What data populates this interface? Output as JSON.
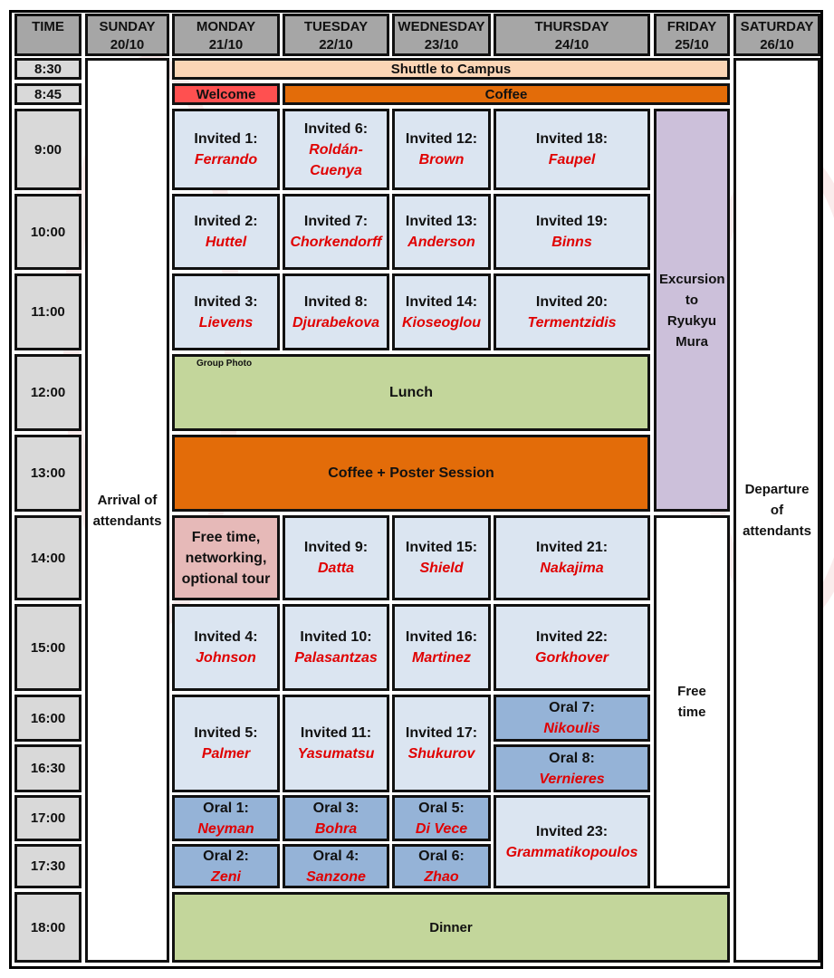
{
  "header": {
    "columns": [
      {
        "day": "TIME",
        "date": ""
      },
      {
        "day": "SUNDAY",
        "date": "20/10"
      },
      {
        "day": "MONDAY",
        "date": "21/10"
      },
      {
        "day": "TUESDAY",
        "date": "22/10"
      },
      {
        "day": "WEDNESDAY",
        "date": "23/10"
      },
      {
        "day": "THURSDAY",
        "date": "24/10"
      },
      {
        "day": "FRIDAY",
        "date": "25/10"
      },
      {
        "day": "SATURDAY",
        "date": "26/10"
      }
    ]
  },
  "times": [
    "8:30",
    "8:45",
    "9:00",
    "10:00",
    "11:00",
    "12:00",
    "13:00",
    "14:00",
    "15:00",
    "16:00",
    "16:30",
    "17:00",
    "17:30",
    "18:00"
  ],
  "events": {
    "shuttle": "Shuttle to Campus",
    "welcome": "Welcome",
    "coffee": "Coffee",
    "group_photo": "Group Photo",
    "lunch": "Lunch",
    "coffee_poster": "Coffee + Poster Session",
    "arrival": "Arrival of attendants",
    "departure": "Departure of attendants",
    "excursion": "Excursion to Ryukyu Mura",
    "free_time_fri": "Free time",
    "free_time_mon": "Free time, networking, optional tour",
    "dinner": "Dinner"
  },
  "talks": [
    {
      "label": "Invited 1:",
      "name": "Ferrando"
    },
    {
      "label": "Invited 6:",
      "name": "Roldán-Cuenya"
    },
    {
      "label": "Invited 12:",
      "name": "Brown"
    },
    {
      "label": "Invited 18:",
      "name": "Faupel"
    },
    {
      "label": "Invited 2:",
      "name": "Huttel"
    },
    {
      "label": "Invited 7:",
      "name": "Chorkendorff"
    },
    {
      "label": "Invited 13:",
      "name": "Anderson"
    },
    {
      "label": "Invited 19:",
      "name": "Binns"
    },
    {
      "label": "Invited 3:",
      "name": "Lievens"
    },
    {
      "label": "Invited 8:",
      "name": "Djurabekova"
    },
    {
      "label": "Invited 14:",
      "name": "Kioseoglou"
    },
    {
      "label": "Invited 20:",
      "name": "Termentzidis"
    },
    {
      "label": "Invited 9:",
      "name": "Datta"
    },
    {
      "label": "Invited 15:",
      "name": "Shield"
    },
    {
      "label": "Invited 21:",
      "name": "Nakajima"
    },
    {
      "label": "Invited 4:",
      "name": "Johnson"
    },
    {
      "label": "Invited 10:",
      "name": "Palasantzas"
    },
    {
      "label": "Invited 16:",
      "name": "Martinez"
    },
    {
      "label": "Invited 22:",
      "name": "Gorkhover"
    },
    {
      "label": "Invited 5:",
      "name": "Palmer"
    },
    {
      "label": "Invited 11:",
      "name": "Yasumatsu"
    },
    {
      "label": "Invited 17:",
      "name": "Shukurov"
    },
    {
      "label": "Oral 7:",
      "name": "Nikoulis"
    },
    {
      "label": "Oral 8:",
      "name": "Vernieres"
    },
    {
      "label": "Oral 1:",
      "name": "Neyman"
    },
    {
      "label": "Oral 3:",
      "name": "Bohra"
    },
    {
      "label": "Oral 5:",
      "name": "Di Vece"
    },
    {
      "label": "Invited 23:",
      "name": "Grammatikopoulos"
    },
    {
      "label": "Oral 2:",
      "name": "Zeni"
    },
    {
      "label": "Oral 4:",
      "name": "Sanzone"
    },
    {
      "label": "Oral 6:",
      "name": "Zhao"
    }
  ],
  "colors": {
    "header": "#a6a6a6",
    "time": "#d9d9d9",
    "shuttle": "#fbd5b5",
    "welcome": "#ff5050",
    "coffee": "#e36c09",
    "invited": "#dbe5f1",
    "oral": "#95b3d7",
    "lunch": "#c3d69b",
    "excursion": "#ccc0da",
    "free_time": "#e6b9b8",
    "speaker_name": "#e00000"
  }
}
